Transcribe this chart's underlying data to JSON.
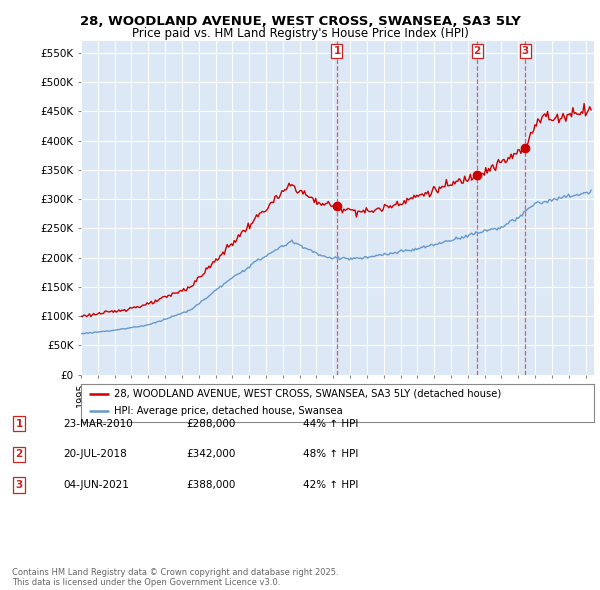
{
  "title_line1": "28, WOODLAND AVENUE, WEST CROSS, SWANSEA, SA3 5LY",
  "title_line2": "Price paid vs. HM Land Registry's House Price Index (HPI)",
  "ylabel_ticks": [
    "£0",
    "£50K",
    "£100K",
    "£150K",
    "£200K",
    "£250K",
    "£300K",
    "£350K",
    "£400K",
    "£450K",
    "£500K",
    "£550K"
  ],
  "ytick_values": [
    0,
    50000,
    100000,
    150000,
    200000,
    250000,
    300000,
    350000,
    400000,
    450000,
    500000,
    550000
  ],
  "ylim": [
    0,
    570000
  ],
  "xlim_start": 1995.0,
  "xlim_end": 2025.5,
  "sale_dates": [
    2010.22,
    2018.55,
    2021.42
  ],
  "sale_labels": [
    "1",
    "2",
    "3"
  ],
  "sale_prices": [
    288000,
    342000,
    388000
  ],
  "legend_line1": "28, WOODLAND AVENUE, WEST CROSS, SWANSEA, SA3 5LY (detached house)",
  "legend_line2": "HPI: Average price, detached house, Swansea",
  "table_data": [
    [
      "1",
      "23-MAR-2010",
      "£288,000",
      "44% ↑ HPI"
    ],
    [
      "2",
      "20-JUL-2018",
      "£342,000",
      "48% ↑ HPI"
    ],
    [
      "3",
      "04-JUN-2021",
      "£388,000",
      "42% ↑ HPI"
    ]
  ],
  "footnote": "Contains HM Land Registry data © Crown copyright and database right 2025.\nThis data is licensed under the Open Government Licence v3.0.",
  "red_color": "#cc0000",
  "blue_color": "#6699cc",
  "dashed_color": "#dd4444",
  "bg_color": "#dce8f5",
  "grid_color": "#ffffff"
}
